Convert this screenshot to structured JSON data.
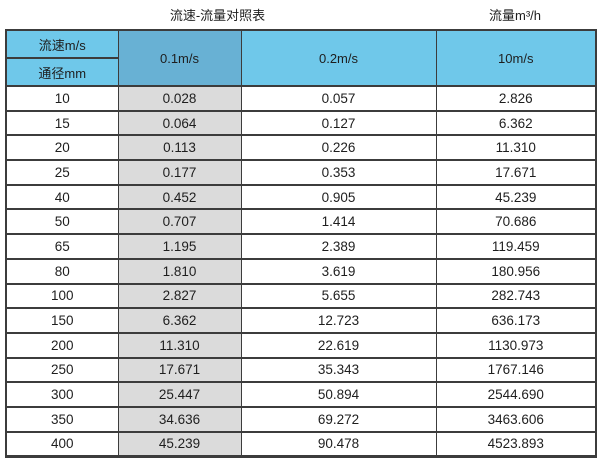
{
  "page": {
    "title_left": "流速-流量对照表",
    "title_right": "流量m³/h"
  },
  "table": {
    "corner": {
      "top": "流速m/s",
      "bottom": "通径mm"
    },
    "velocity_columns": [
      "0.1m/s",
      "0.2m/s",
      "10m/s"
    ],
    "rows": [
      {
        "cells": [
          "10",
          "0.028",
          "0.057",
          "2.826"
        ]
      },
      {
        "cells": [
          "15",
          "0.064",
          "0.127",
          "6.362"
        ]
      },
      {
        "cells": [
          "20",
          "0.113",
          "0.226",
          "11.310"
        ]
      },
      {
        "cells": [
          "25",
          "0.177",
          "0.353",
          "17.671"
        ]
      },
      {
        "cells": [
          "40",
          "0.452",
          "0.905",
          "45.239"
        ]
      },
      {
        "cells": [
          "50",
          "0.707",
          "1.414",
          "70.686"
        ]
      },
      {
        "cells": [
          "65",
          "1.195",
          "2.389",
          "119.459"
        ]
      },
      {
        "cells": [
          "80",
          "1.810",
          "3.619",
          "180.956"
        ]
      },
      {
        "cells": [
          "100",
          "2.827",
          "5.655",
          "282.743"
        ]
      },
      {
        "cells": [
          "150",
          "6.362",
          "12.723",
          "636.173"
        ]
      },
      {
        "cells": [
          "200",
          "11.310",
          "22.619",
          "1130.973"
        ]
      },
      {
        "cells": [
          "250",
          "17.671",
          "35.343",
          "1767.146"
        ]
      },
      {
        "cells": [
          "300",
          "25.447",
          "50.894",
          "2544.690"
        ]
      },
      {
        "cells": [
          "350",
          "34.636",
          "69.272",
          "3463.606"
        ]
      },
      {
        "cells": [
          "400",
          "45.239",
          "90.478",
          "4523.893"
        ]
      }
    ]
  },
  "colors": {
    "header_blue": "#6FC8EA",
    "header_blue_dark": "#68B1D4",
    "column_gray": "#DBDBDB",
    "border": "#3C3C3C",
    "text": "#1E1E1E"
  },
  "chart_data": {
    "type": "table",
    "title": "流速-流量对照表",
    "unit_label": "流量m³/h",
    "columns": [
      "通径mm",
      "0.1m/s",
      "0.2m/s",
      "10m/s"
    ],
    "rows": [
      [
        10,
        0.028,
        0.057,
        2.826
      ],
      [
        15,
        0.064,
        0.127,
        6.362
      ],
      [
        20,
        0.113,
        0.226,
        11.31
      ],
      [
        25,
        0.177,
        0.353,
        17.671
      ],
      [
        40,
        0.452,
        0.905,
        45.239
      ],
      [
        50,
        0.707,
        1.414,
        70.686
      ],
      [
        65,
        1.195,
        2.389,
        119.459
      ],
      [
        80,
        1.81,
        3.619,
        180.956
      ],
      [
        100,
        2.827,
        5.655,
        282.743
      ],
      [
        150,
        6.362,
        12.723,
        636.173
      ],
      [
        200,
        11.31,
        22.619,
        1130.973
      ],
      [
        250,
        17.671,
        35.343,
        1767.146
      ],
      [
        300,
        25.447,
        50.894,
        2544.69
      ],
      [
        350,
        34.636,
        69.272,
        3463.606
      ],
      [
        400,
        45.239,
        90.478,
        4523.893
      ]
    ]
  }
}
